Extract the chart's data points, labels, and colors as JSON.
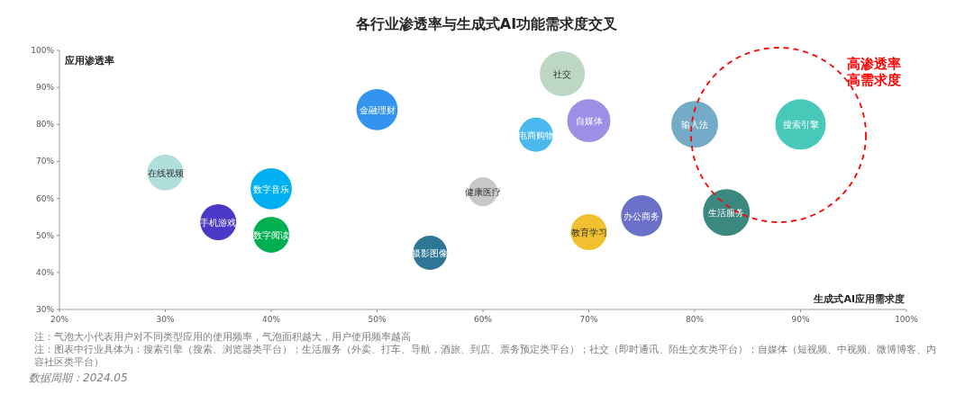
{
  "chart_data": {
    "type": "bubble",
    "title": "各行业渗透率与生成式AI功能需求度交叉",
    "xlabel": "生成式AI应用需求度",
    "ylabel": "应用渗透率",
    "xlim": [
      20,
      100
    ],
    "ylim": [
      30,
      100
    ],
    "xticks": [
      {
        "value": 20,
        "label": "20%"
      },
      {
        "value": 30,
        "label": "30%"
      },
      {
        "value": 40,
        "label": "40%"
      },
      {
        "value": 50,
        "label": "50%"
      },
      {
        "value": 60,
        "label": "60%"
      },
      {
        "value": 70,
        "label": "70%"
      },
      {
        "value": 80,
        "label": "80%"
      },
      {
        "value": 90,
        "label": "90%"
      },
      {
        "value": 100,
        "label": "100%"
      }
    ],
    "yticks": [
      {
        "value": 30,
        "label": "30%"
      },
      {
        "value": 40,
        "label": "40%"
      },
      {
        "value": 50,
        "label": "50%"
      },
      {
        "value": 60,
        "label": "60%"
      },
      {
        "value": 70,
        "label": "70%"
      },
      {
        "value": 80,
        "label": "80%"
      },
      {
        "value": 90,
        "label": "90%"
      },
      {
        "value": 100,
        "label": "100%"
      }
    ],
    "series": [
      {
        "name": "在线视频",
        "color": "#b0dedb",
        "x": [
          30
        ],
        "values": [
          67
        ],
        "sizes": [
          0.51
        ]
      },
      {
        "name": "手机游戏",
        "color": "#4b38c8",
        "x": [
          35
        ],
        "values": [
          53.6
        ],
        "sizes": [
          0.51
        ]
      },
      {
        "name": "数字音乐",
        "color": "#00b0f0",
        "x": [
          40
        ],
        "values": [
          62.6
        ],
        "sizes": [
          0.67
        ]
      },
      {
        "name": "数字阅读",
        "color": "#00b050",
        "x": [
          40
        ],
        "values": [
          50.2
        ],
        "sizes": [
          0.51
        ]
      },
      {
        "name": "金融理财",
        "color": "#3394f0",
        "x": [
          50
        ],
        "values": [
          84
        ],
        "sizes": [
          0.67
        ]
      },
      {
        "name": "摄影图像",
        "color": "#2e7596",
        "x": [
          55
        ],
        "values": [
          45.3
        ],
        "sizes": [
          0.46
        ]
      },
      {
        "name": "健康医疗",
        "color": "#c8c8c8",
        "x": [
          60
        ],
        "values": [
          61.8
        ],
        "sizes": [
          0.33
        ]
      },
      {
        "name": "电商购物",
        "color": "#4bb8ef",
        "x": [
          65
        ],
        "values": [
          77.2
        ],
        "sizes": [
          0.46
        ]
      },
      {
        "name": "社交",
        "color": "#bcd8c4",
        "x": [
          67.5
        ],
        "values": [
          93.7
        ],
        "sizes": [
          0.8
        ]
      },
      {
        "name": "自媒体",
        "color": "#9b8fe6",
        "x": [
          70
        ],
        "values": [
          81
        ],
        "sizes": [
          0.73
        ]
      },
      {
        "name": "教育学习",
        "color": "#f0c030",
        "x": [
          70
        ],
        "values": [
          50.9
        ],
        "sizes": [
          0.51
        ]
      },
      {
        "name": "办公商务",
        "color": "#6b70c8",
        "x": [
          75
        ],
        "values": [
          55.3
        ],
        "sizes": [
          0.67
        ]
      },
      {
        "name": "输入法",
        "color": "#74abc6",
        "x": [
          80
        ],
        "values": [
          80
        ],
        "sizes": [
          0.86
        ]
      },
      {
        "name": "搜索引擎",
        "color": "#48c8b8",
        "x": [
          90
        ],
        "values": [
          80
        ],
        "sizes": [
          1
        ]
      },
      {
        "name": "生活服务",
        "color": "#3a8880",
        "x": [
          83
        ],
        "values": [
          56.2
        ],
        "sizes": [
          0.86
        ]
      }
    ],
    "annotations": [
      "高渗透率高需求度",
      "注：气泡大小代表用户对不同类型应用的使用频率，气泡面积越大，用户使用频率越高",
      "注：图表中行业具体为：搜索引擎（搜索、浏览器类平台）；生活服务（外卖、打车、导航，酒旅、到店、票务预定类平台）；社交（即时通讯、陌生交友类平台）；自媒体（短视频、中视频、微博博客、内容社区类平台）",
      "数据周期：2024.05"
    ],
    "grid": false
  }
}
